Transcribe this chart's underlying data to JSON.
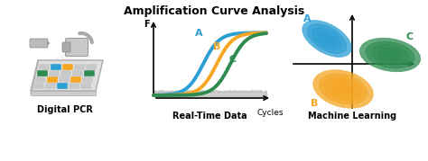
{
  "title": "Amplification Curve Analysis",
  "title_fontsize": 9,
  "title_fontweight": "bold",
  "panel_labels": [
    "Digital PCR",
    "Real-Time Data",
    "Machine Learning"
  ],
  "panel_label_fontsize": 7,
  "panel_label_fontweight": "bold",
  "color_blue": "#2B9ED4",
  "color_orange": "#F5A623",
  "color_green": "#2E8B50",
  "color_gray": "#A0A0A0",
  "color_lightgray": "#C8C8C8",
  "color_white": "#FFFFFF",
  "background_color": "#FFFFFF",
  "curve_label_A": "A",
  "curve_label_B": "B",
  "curve_label_C": "C",
  "axis_label_F": "F",
  "axis_label_cycles": "Cycles",
  "fig_w": 4.74,
  "fig_h": 1.79,
  "dpi": 100
}
